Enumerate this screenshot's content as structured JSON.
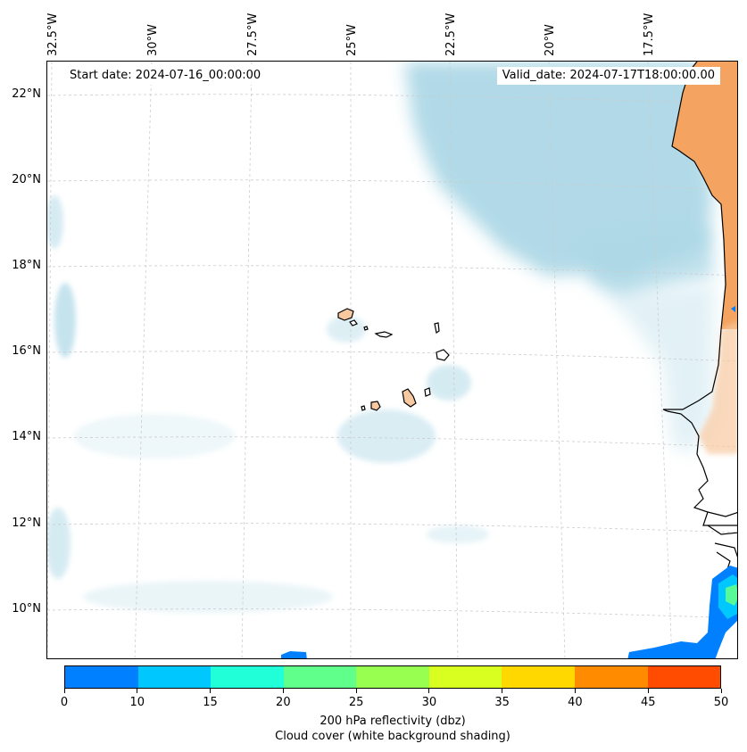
{
  "map": {
    "start_date_label": "Start date: 2024-07-16_00:00:00",
    "valid_date_label": "Valid_date: 2024-07-17T18:00:00.00",
    "longitude_labels": [
      "32.5°W",
      "30°W",
      "27.5°W",
      "25°W",
      "22.5°W",
      "20°W",
      "17.5°W"
    ],
    "latitude_labels": [
      "22°N",
      "20°N",
      "18°N",
      "16°N",
      "14°N",
      "12°N",
      "10°N"
    ],
    "colors": {
      "land_orange": "#f4a460",
      "island_fill": "#f8c9a0",
      "cloud": "#add8e6",
      "coastline": "#000000",
      "gridline": "#cccccc"
    }
  },
  "colorbar": {
    "tick_labels": [
      "0",
      "10",
      "15",
      "20",
      "25",
      "30",
      "35",
      "40",
      "45",
      "50"
    ],
    "colors": [
      "#0080ff",
      "#00c8ff",
      "#20ffd8",
      "#60ff8c",
      "#98ff50",
      "#d8ff20",
      "#ffd800",
      "#ff8c00",
      "#ff4c00"
    ],
    "label_line1": "200 hPa reflectivity (dbz)",
    "label_line2": "Cloud cover (white background shading)"
  }
}
